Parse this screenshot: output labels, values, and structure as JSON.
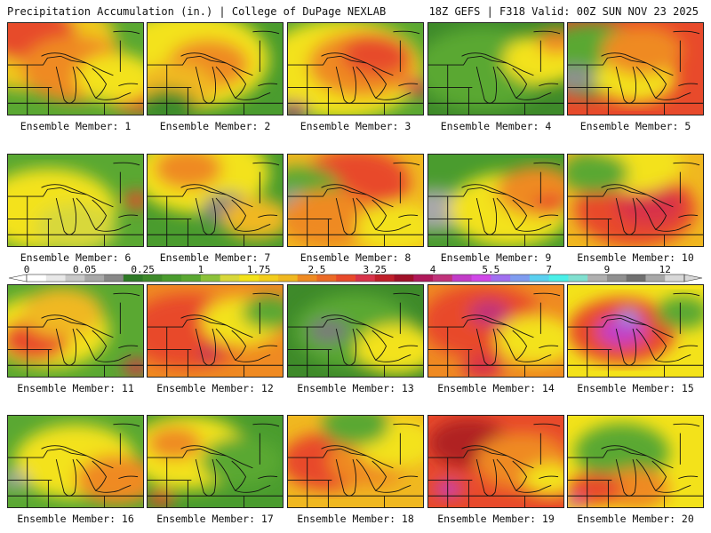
{
  "header": {
    "left": "Precipitation Accumulation (in.) | College of DuPage NEXLAB",
    "right": "18Z GEFS | F318 Valid: 00Z SUN NOV 23 2025"
  },
  "panels": [
    {
      "label": "Ensemble Member: 1",
      "base": "#5aa832",
      "blobs": [
        [
          "#f0c81e",
          0.2,
          0.2,
          0.6
        ],
        [
          "#e74b2a",
          0.15,
          0.1,
          0.35
        ],
        [
          "#e84a2b",
          0.95,
          0.75,
          0.25
        ],
        [
          "#ef8a22",
          0.5,
          0.5,
          0.4
        ],
        [
          "#f3e21a",
          0.8,
          0.6,
          0.3
        ]
      ]
    },
    {
      "label": "Ensemble Member: 2",
      "base": "#4a9c2e",
      "blobs": [
        [
          "#f3e21a",
          0.3,
          0.4,
          0.6
        ],
        [
          "#ef8a22",
          0.45,
          0.45,
          0.3
        ],
        [
          "#f0b820",
          0.2,
          0.7,
          0.3
        ],
        [
          "#3e8a2a",
          0.15,
          0.9,
          0.2
        ]
      ]
    },
    {
      "label": "Ensemble Member: 3",
      "base": "#5aa832",
      "blobs": [
        [
          "#f3e21a",
          0.4,
          0.5,
          0.6
        ],
        [
          "#ef8a22",
          0.55,
          0.45,
          0.4
        ],
        [
          "#e74b2a",
          0.65,
          0.35,
          0.25
        ],
        [
          "#d8334a",
          0.95,
          0.7,
          0.1
        ],
        [
          "#9b1a6e",
          0.05,
          0.95,
          0.1
        ]
      ]
    },
    {
      "label": "Ensemble Member: 4",
      "base": "#3e8a2a",
      "blobs": [
        [
          "#5aa832",
          0.4,
          0.5,
          0.5
        ],
        [
          "#f3e21a",
          0.85,
          0.4,
          0.3
        ],
        [
          "#ef8a22",
          0.95,
          0.2,
          0.15
        ]
      ]
    },
    {
      "label": "Ensemble Member: 5",
      "base": "#e84a2b",
      "blobs": [
        [
          "#5aa832",
          0.2,
          0.4,
          0.45
        ],
        [
          "#909090",
          0.05,
          0.6,
          0.15
        ],
        [
          "#f3e21a",
          0.5,
          0.6,
          0.3
        ],
        [
          "#ef8a22",
          0.55,
          0.3,
          0.3
        ]
      ]
    },
    {
      "label": "Ensemble Member: 6",
      "base": "#5aa832",
      "blobs": [
        [
          "#f3e21a",
          0.3,
          0.6,
          0.5
        ],
        [
          "#d8d83a",
          0.5,
          0.8,
          0.3
        ],
        [
          "#e84a2b",
          0.95,
          0.5,
          0.1
        ]
      ]
    },
    {
      "label": "Ensemble Member: 7",
      "base": "#4a9c2e",
      "blobs": [
        [
          "#f3e21a",
          0.4,
          0.2,
          0.5
        ],
        [
          "#ef8a22",
          0.3,
          0.15,
          0.25
        ],
        [
          "#808080",
          0.6,
          0.6,
          0.2
        ],
        [
          "#f0b820",
          0.8,
          0.7,
          0.25
        ]
      ]
    },
    {
      "label": "Ensemble Member: 8",
      "base": "#f0b820",
      "blobs": [
        [
          "#e84a2b",
          0.5,
          0.3,
          0.4
        ],
        [
          "#5aa832",
          0.1,
          0.4,
          0.3
        ],
        [
          "#a0a0a0",
          0.05,
          0.5,
          0.12
        ],
        [
          "#ef8a22",
          0.3,
          0.7,
          0.35
        ],
        [
          "#f3e21a",
          0.8,
          0.8,
          0.3
        ]
      ]
    },
    {
      "label": "Ensemble Member: 9",
      "base": "#4a9c2e",
      "blobs": [
        [
          "#a8a8a8",
          0.05,
          0.6,
          0.25
        ],
        [
          "#f3e21a",
          0.6,
          0.6,
          0.45
        ],
        [
          "#ef8a22",
          0.8,
          0.4,
          0.3
        ],
        [
          "#e84a2b",
          0.9,
          0.55,
          0.12
        ]
      ]
    },
    {
      "label": "Ensemble Member: 10",
      "base": "#f0b820",
      "blobs": [
        [
          "#e84a2b",
          0.5,
          0.6,
          0.45
        ],
        [
          "#d8334a",
          0.6,
          0.55,
          0.25
        ],
        [
          "#f3e21a",
          0.5,
          0.1,
          0.35
        ],
        [
          "#5aa832",
          0.2,
          0.2,
          0.25
        ]
      ]
    },
    {
      "label": "Ensemble Member: 11",
      "base": "#5aa832",
      "blobs": [
        [
          "#f3e21a",
          0.3,
          0.5,
          0.45
        ],
        [
          "#e84a2b",
          0.2,
          0.6,
          0.25
        ],
        [
          "#d8334a",
          0.95,
          0.9,
          0.1
        ],
        [
          "#f0b820",
          0.4,
          0.3,
          0.3
        ]
      ]
    },
    {
      "label": "Ensemble Member: 12",
      "base": "#ef8a22",
      "blobs": [
        [
          "#e84a2b",
          0.3,
          0.5,
          0.45
        ],
        [
          "#f3e21a",
          0.7,
          0.4,
          0.3
        ],
        [
          "#5aa832",
          0.9,
          0.3,
          0.2
        ],
        [
          "#9b1a6e",
          0.45,
          0.75,
          0.06
        ]
      ]
    },
    {
      "label": "Ensemble Member: 13",
      "base": "#3e8a2a",
      "blobs": [
        [
          "#5aa832",
          0.5,
          0.5,
          0.45
        ],
        [
          "#f3e21a",
          0.8,
          0.7,
          0.3
        ],
        [
          "#7a7a7a",
          0.3,
          0.5,
          0.15
        ]
      ]
    },
    {
      "label": "Ensemble Member: 14",
      "base": "#ef8a22",
      "blobs": [
        [
          "#e84a2b",
          0.4,
          0.4,
          0.45
        ],
        [
          "#c0327a",
          0.45,
          0.3,
          0.15
        ],
        [
          "#f3e21a",
          0.8,
          0.6,
          0.3
        ],
        [
          "#d8334a",
          0.4,
          0.9,
          0.15
        ]
      ]
    },
    {
      "label": "Ensemble Member: 15",
      "base": "#f3e21a",
      "blobs": [
        [
          "#e84a2b",
          0.4,
          0.5,
          0.4
        ],
        [
          "#c23cc8",
          0.4,
          0.5,
          0.18
        ],
        [
          "#7f9cf0",
          0.45,
          0.35,
          0.08
        ],
        [
          "#5aa832",
          0.85,
          0.3,
          0.2
        ]
      ]
    },
    {
      "label": "Ensemble Member: 16",
      "base": "#5aa832",
      "blobs": [
        [
          "#f3e21a",
          0.5,
          0.5,
          0.45
        ],
        [
          "#a8a8a8",
          0.05,
          0.7,
          0.1
        ],
        [
          "#ef8a22",
          0.8,
          0.7,
          0.3
        ]
      ]
    },
    {
      "label": "Ensemble Member: 17",
      "base": "#4a9c2e",
      "blobs": [
        [
          "#f3e21a",
          0.3,
          0.4,
          0.45
        ],
        [
          "#ef8a22",
          0.2,
          0.3,
          0.2
        ],
        [
          "#e84a2b",
          0.1,
          0.9,
          0.1
        ],
        [
          "#5aa832",
          0.7,
          0.5,
          0.3
        ]
      ]
    },
    {
      "label": "Ensemble Member: 18",
      "base": "#f0b820",
      "blobs": [
        [
          "#e84a2b",
          0.3,
          0.5,
          0.35
        ],
        [
          "#ef8a22",
          0.6,
          0.5,
          0.3
        ],
        [
          "#f3e21a",
          0.8,
          0.3,
          0.3
        ],
        [
          "#5aa832",
          0.5,
          0.1,
          0.25
        ]
      ]
    },
    {
      "label": "Ensemble Member: 19",
      "base": "#e84a2b",
      "blobs": [
        [
          "#b02020",
          0.3,
          0.3,
          0.3
        ],
        [
          "#c23cc8",
          0.15,
          0.8,
          0.1
        ],
        [
          "#ef8a22",
          0.7,
          0.5,
          0.35
        ],
        [
          "#f3e21a",
          0.9,
          0.7,
          0.2
        ]
      ]
    },
    {
      "label": "Ensemble Member: 20",
      "base": "#f3e21a",
      "blobs": [
        [
          "#5aa832",
          0.4,
          0.4,
          0.35
        ],
        [
          "#ef8a22",
          0.5,
          0.8,
          0.25
        ],
        [
          "#e84a2b",
          0.2,
          0.8,
          0.2
        ],
        [
          "#c23cc8",
          0.05,
          0.95,
          0.06
        ]
      ]
    }
  ],
  "colorbar": {
    "colors": [
      "#ffffff",
      "#e8e8e8",
      "#c8c8c8",
      "#a8a8a8",
      "#888888",
      "#2e7a26",
      "#3e8a2a",
      "#4a9c2e",
      "#5aa832",
      "#8cc23a",
      "#d8d83a",
      "#f3e21a",
      "#f3cd1c",
      "#f0b820",
      "#ef8a22",
      "#ec6a26",
      "#e84a2b",
      "#d8334a",
      "#c01f2a",
      "#a01028",
      "#b0185a",
      "#c0327a",
      "#c23cc8",
      "#d048e8",
      "#a070f0",
      "#7f9cf0",
      "#5ad0f0",
      "#4af0e8",
      "#80e0d0",
      "#b0b0b0",
      "#909090",
      "#707070",
      "#a8a8a8",
      "#d8d8d8"
    ],
    "ticks": [
      [
        "0",
        0
      ],
      [
        "0.05",
        3
      ],
      [
        "0.25",
        6
      ],
      [
        "1",
        9
      ],
      [
        "1.75",
        12
      ],
      [
        "2.5",
        15
      ],
      [
        "3.25",
        18
      ],
      [
        "4",
        21
      ],
      [
        "5.5",
        24
      ],
      [
        "7",
        27
      ],
      [
        "9",
        30
      ],
      [
        "12",
        33
      ]
    ]
  }
}
